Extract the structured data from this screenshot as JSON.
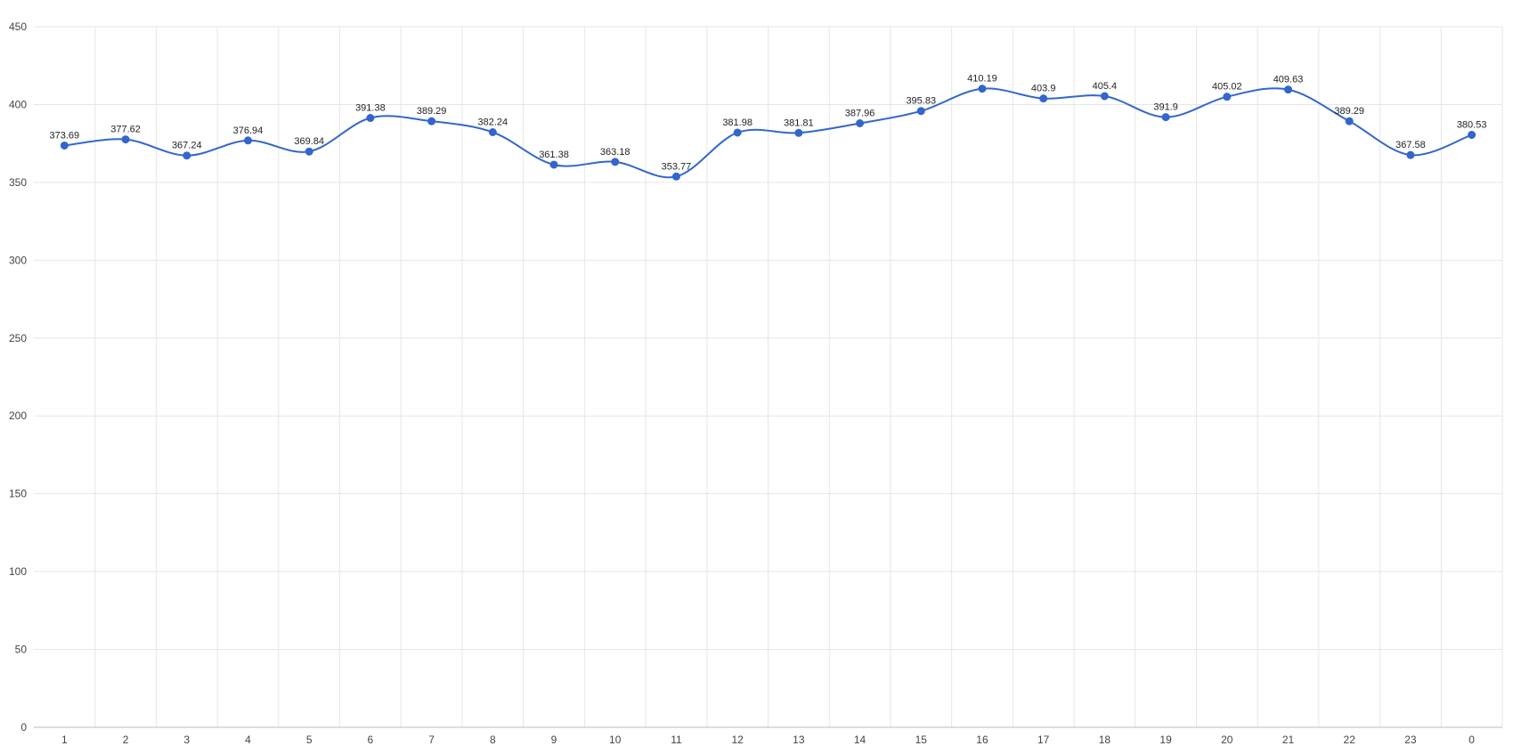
{
  "chart_data": {
    "type": "line",
    "title": "",
    "xlabel": "",
    "ylabel": "",
    "categories": [
      "1",
      "2",
      "3",
      "4",
      "5",
      "6",
      "7",
      "8",
      "9",
      "10",
      "11",
      "12",
      "13",
      "14",
      "15",
      "16",
      "17",
      "18",
      "19",
      "20",
      "21",
      "22",
      "23",
      "0"
    ],
    "series": [
      {
        "values": [
          373.69,
          377.62,
          367.24,
          376.94,
          369.84,
          391.38,
          389.29,
          382.24,
          361.38,
          363.18,
          353.77,
          381.98,
          381.81,
          387.96,
          395.83,
          410.19,
          403.9,
          405.4,
          391.9,
          405.02,
          409.63,
          389.29,
          367.58,
          380.53
        ],
        "color": "#3366cc"
      }
    ],
    "ylim": [
      0,
      450
    ],
    "yticks": [
      0,
      50,
      100,
      150,
      200,
      250,
      300,
      350,
      400,
      450
    ],
    "grid": true,
    "legend": "none",
    "curve": "smooth",
    "data_labels": true
  }
}
